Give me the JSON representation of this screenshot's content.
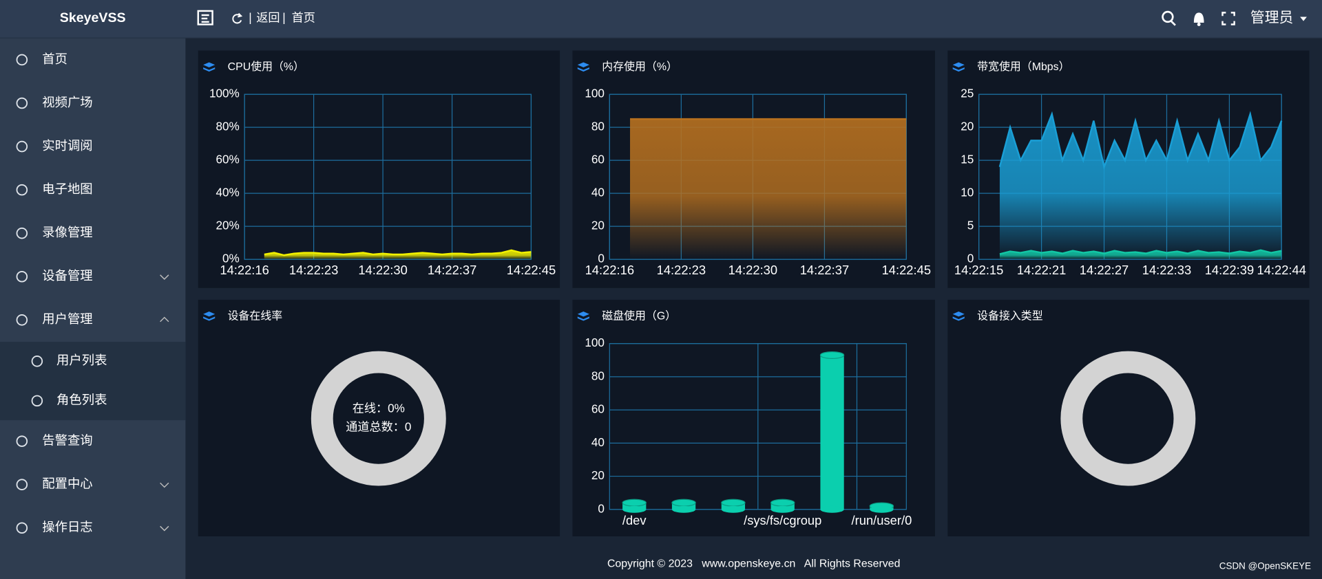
{
  "header": {
    "logo": "SkeyeVSS",
    "back": "返回",
    "breadcrumb": "首页",
    "user": "管理员"
  },
  "menu": [
    {
      "label": "首页",
      "active": true
    },
    {
      "label": "视频广场"
    },
    {
      "label": "实时调阅"
    },
    {
      "label": "电子地图"
    },
    {
      "label": "录像管理"
    },
    {
      "label": "设备管理",
      "expandable": true
    },
    {
      "label": "用户管理",
      "expandable": true,
      "expanded": true,
      "children": [
        "用户列表",
        "角色列表"
      ]
    },
    {
      "label": "告警查询"
    },
    {
      "label": "配置中心",
      "expandable": true
    },
    {
      "label": "操作日志",
      "expandable": true
    }
  ],
  "footer": {
    "copyright": "Copyright © 2023   www.openskeye.cn   All Rights Reserved",
    "watermark": "CSDN @OpenSKEYE"
  },
  "chart_data": [
    {
      "type": "line",
      "title": "CPU使用（%）",
      "color": "#f2f200",
      "categories": [
        "14:22:16",
        null,
        null,
        null,
        null,
        null,
        null,
        "14:22:23",
        null,
        null,
        null,
        null,
        null,
        null,
        "14:22:30",
        null,
        null,
        null,
        null,
        null,
        null,
        "14:22:37",
        null,
        null,
        null,
        null,
        null,
        null,
        null,
        "14:22:45"
      ],
      "values": [
        null,
        null,
        3,
        4,
        2.5,
        3.5,
        4,
        4,
        3.5,
        3.5,
        3,
        3.5,
        4,
        3,
        3.5,
        3,
        3,
        3.5,
        4,
        3.5,
        3,
        3.5,
        3.5,
        3,
        3.5,
        3.5,
        4,
        5.5,
        4,
        4.5
      ],
      "ylim": [
        0,
        100
      ],
      "yticks": [
        {
          "value": 0,
          "label": "0%"
        },
        {
          "value": 20,
          "label": "20%"
        },
        {
          "value": 40,
          "label": "40%"
        },
        {
          "value": 60,
          "label": "60%"
        },
        {
          "value": 80,
          "label": "80%"
        },
        {
          "value": 100,
          "label": "100%"
        }
      ],
      "grid": true
    },
    {
      "type": "area",
      "title": "内存使用（%）",
      "color": "#b8711f",
      "categories": [
        "14:22:16",
        null,
        null,
        null,
        null,
        null,
        null,
        "14:22:23",
        null,
        null,
        null,
        null,
        null,
        null,
        "14:22:30",
        null,
        null,
        null,
        null,
        null,
        null,
        "14:22:37",
        null,
        null,
        null,
        null,
        null,
        null,
        null,
        "14:22:45"
      ],
      "values": [
        null,
        null,
        85,
        85,
        85,
        85,
        85,
        85,
        85,
        85,
        85,
        85,
        85,
        85,
        85,
        85,
        85,
        85,
        85,
        85,
        85,
        85,
        85,
        85,
        85,
        85,
        85,
        85,
        85,
        85
      ],
      "ylim": [
        0,
        100
      ],
      "yticks": [
        0,
        20,
        40,
        60,
        80,
        100
      ],
      "grid": true
    },
    {
      "type": "line",
      "title": "带宽使用（Mbps）",
      "categories": [
        "14:22:15",
        null,
        null,
        null,
        null,
        null,
        "14:22:21",
        null,
        null,
        null,
        null,
        null,
        "14:22:27",
        null,
        null,
        null,
        null,
        null,
        "14:22:33",
        null,
        null,
        null,
        null,
        null,
        "14:22:39",
        null,
        null,
        null,
        null,
        "14:22:44"
      ],
      "series": [
        {
          "color": "#1a9fd6",
          "values": [
            null,
            null,
            14,
            20,
            15,
            18,
            18,
            22,
            15,
            19,
            15,
            21,
            14,
            18,
            15,
            21,
            15,
            18,
            15,
            21,
            15,
            19,
            15,
            21,
            15,
            17,
            22,
            15,
            17,
            21
          ]
        },
        {
          "color": "#12c7a5",
          "values": [
            null,
            null,
            0.8,
            1.2,
            1,
            1.3,
            1,
            1.2,
            0.9,
            1.3,
            1,
            1.2,
            0.9,
            1.3,
            1,
            1.1,
            0.9,
            1.3,
            1,
            1.2,
            0.9,
            1.3,
            1,
            1.1,
            0.9,
            1.2,
            1,
            1.4,
            1,
            1.3
          ]
        }
      ],
      "ylim": [
        0,
        25
      ],
      "yticks": [
        0,
        5,
        10,
        15,
        20,
        25
      ],
      "grid": true
    },
    {
      "type": "donut",
      "title": "设备在线率",
      "color": "#d3d3d3",
      "labels": [
        "在线：0%",
        "通道总数：0"
      ]
    },
    {
      "type": "bar",
      "title": "磁盘使用（G）",
      "color": "#0bcfae",
      "categories": [
        "/dev",
        null,
        null,
        "/sys/fs/cgroup",
        null,
        "/run/user/0"
      ],
      "values": [
        4,
        4,
        4,
        4,
        93,
        2
      ],
      "ylim": [
        0,
        100
      ],
      "yticks": [
        0,
        20,
        40,
        60,
        80,
        100
      ],
      "grid": true
    },
    {
      "type": "donut",
      "title": "设备接入类型",
      "color": "#d3d3d3"
    }
  ]
}
